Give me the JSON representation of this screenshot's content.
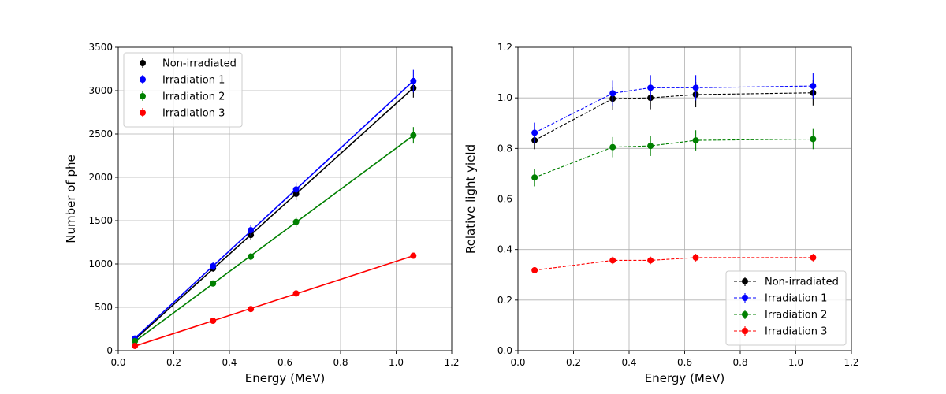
{
  "colors": {
    "Non-irradiated": "#000000",
    "Irradiation 1": "#0000ff",
    "Irradiation 2": "#008000",
    "Irradiation 3": "#ff0000"
  },
  "chart_data": [
    {
      "type": "scatter",
      "xlabel": "Energy (MeV)",
      "ylabel": "Number of phe",
      "xlim": [
        0.0,
        1.2
      ],
      "ylim": [
        0,
        3500
      ],
      "xticks": [
        "0.0",
        "0.2",
        "0.4",
        "0.6",
        "0.8",
        "1.0",
        "1.2"
      ],
      "yticks": [
        "0",
        "500",
        "1000",
        "1500",
        "2000",
        "2500",
        "3000",
        "3500"
      ],
      "grid": true,
      "legend": "top-left",
      "fit_lines": true,
      "x": [
        0.06,
        0.341,
        0.477,
        0.64,
        1.062
      ],
      "series": [
        {
          "name": "Non-irradiated",
          "values": [
            125,
            950,
            1335,
            1810,
            3030
          ],
          "errors": [
            20,
            40,
            55,
            75,
            110
          ]
        },
        {
          "name": "Irradiation 1",
          "values": [
            140,
            975,
            1390,
            1860,
            3110
          ],
          "errors": [
            20,
            45,
            60,
            80,
            130
          ]
        },
        {
          "name": "Irradiation 2",
          "values": [
            110,
            775,
            1085,
            1485,
            2485
          ],
          "errors": [
            15,
            30,
            40,
            60,
            95
          ]
        },
        {
          "name": "Irradiation 3",
          "values": [
            55,
            345,
            480,
            660,
            1095
          ],
          "errors": [
            5,
            15,
            20,
            25,
            35
          ]
        }
      ]
    },
    {
      "type": "line",
      "xlabel": "Energy (MeV)",
      "ylabel": "Relative light yield",
      "xlim": [
        0.0,
        1.2
      ],
      "ylim": [
        0.0,
        1.2
      ],
      "xticks": [
        "0.0",
        "0.2",
        "0.4",
        "0.6",
        "0.8",
        "1.0",
        "1.2"
      ],
      "yticks": [
        "0.0",
        "0.2",
        "0.4",
        "0.6",
        "0.8",
        "1.0",
        "1.2"
      ],
      "grid": true,
      "legend": "bottom-right",
      "line_style": "dashed",
      "x": [
        0.06,
        0.341,
        0.477,
        0.64,
        1.062
      ],
      "series": [
        {
          "name": "Non-irradiated",
          "values": [
            0.832,
            0.997,
            1.0,
            1.013,
            1.02
          ],
          "errors": [
            0.035,
            0.045,
            0.045,
            0.05,
            0.05
          ]
        },
        {
          "name": "Irradiation 1",
          "values": [
            0.862,
            1.018,
            1.04,
            1.04,
            1.047
          ],
          "errors": [
            0.04,
            0.05,
            0.05,
            0.05,
            0.05
          ]
        },
        {
          "name": "Irradiation 2",
          "values": [
            0.685,
            0.805,
            0.81,
            0.832,
            0.837
          ],
          "errors": [
            0.035,
            0.04,
            0.04,
            0.04,
            0.04
          ]
        },
        {
          "name": "Irradiation 3",
          "values": [
            0.318,
            0.357,
            0.357,
            0.368,
            0.368
          ],
          "errors": [
            0.012,
            0.015,
            0.015,
            0.015,
            0.015
          ]
        }
      ]
    }
  ]
}
